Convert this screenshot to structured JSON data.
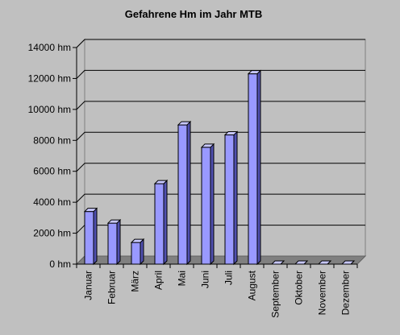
{
  "chart_data": {
    "type": "bar",
    "title": "Gefahrene Hm im Jahr MTB",
    "xlabel": "",
    "ylabel": "",
    "categories": [
      "Januar",
      "Februar",
      "März",
      "April",
      "Mai",
      "Juni",
      "Juli",
      "August",
      "September",
      "Oktober",
      "November",
      "Dezember"
    ],
    "values": [
      3400,
      2650,
      1400,
      5200,
      9000,
      7550,
      8350,
      12300,
      0,
      0,
      0,
      0
    ],
    "ylim": [
      0,
      14000
    ],
    "yticks": [
      0,
      2000,
      4000,
      6000,
      8000,
      10000,
      12000,
      14000
    ],
    "ytick_labels": [
      "0 hm",
      "2000 hm",
      "4000 hm",
      "6000 hm",
      "8000 hm",
      "10000 hm",
      "12000 hm",
      "14000 hm"
    ],
    "grid": true,
    "legend": "none",
    "style": "3d-column",
    "colors": {
      "background": "#c0c0c0",
      "bar_front": "#9999ff",
      "bar_side": "#5050b0",
      "bar_top": "#c8c8ff",
      "bar_outline": "#000000",
      "floor": "#808080",
      "gridline": "#000000",
      "text": "#000000"
    }
  }
}
